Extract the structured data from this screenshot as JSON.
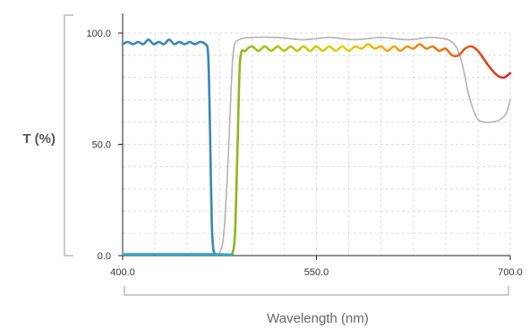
{
  "chart_data": {
    "type": "line",
    "xlabel": "Wavelength (nm)",
    "ylabel": "T (%)",
    "xlim": [
      400,
      700
    ],
    "ylim": [
      0,
      100
    ],
    "x_tick_values": [
      400,
      550,
      700
    ],
    "x_tick_labels": [
      "400.0",
      "550.0",
      "700.0"
    ],
    "y_tick_values": [
      0,
      50,
      100
    ],
    "y_tick_labels": [
      "0.0",
      "50.0",
      "100.0"
    ],
    "grid": true,
    "legend": "none",
    "series": [
      {
        "style": "gray",
        "color": "#b3b3b3",
        "x": [
          400,
          472,
          475,
          478,
          481,
          484,
          486,
          490,
          500,
          520,
          540,
          560,
          580,
          600,
          620,
          640,
          655,
          662,
          668,
          674,
          680,
          686,
          692,
          697,
          700
        ],
        "y": [
          1,
          1,
          1.5,
          8,
          35,
          75,
          93,
          97,
          98,
          98,
          97,
          98,
          97,
          98,
          97,
          98,
          96,
          88,
          72,
          62,
          60,
          60,
          61,
          64,
          70
        ]
      },
      {
        "style": "blue",
        "color": "#3a86b8",
        "x": [
          400,
          404,
          408,
          412,
          416,
          420,
          424,
          428,
          432,
          436,
          440,
          444,
          448,
          452,
          456,
          460,
          464,
          466,
          467,
          468,
          469,
          470,
          471
        ],
        "y": [
          95,
          96,
          95,
          96,
          95,
          97,
          95,
          96,
          95,
          97,
          95,
          96,
          95,
          96,
          95,
          96,
          95,
          92,
          75,
          45,
          15,
          4,
          1
        ]
      },
      {
        "style": "cyan-baseline",
        "color": "#2aa8c4",
        "x": [
          400,
          485
        ],
        "y": [
          0.5,
          0.5
        ]
      },
      {
        "style": "spectral-gradient",
        "colors": [
          "#8ab620",
          "#b8c614",
          "#e8d00e",
          "#f0a010",
          "#e4681a",
          "#d62a1e"
        ],
        "x": [
          485,
          487,
          489,
          491,
          495,
          500,
          505,
          510,
          515,
          520,
          525,
          530,
          535,
          540,
          545,
          550,
          555,
          560,
          565,
          570,
          575,
          580,
          585,
          590,
          595,
          600,
          605,
          610,
          615,
          620,
          625,
          630,
          635,
          640,
          645,
          650,
          655,
          660,
          665,
          670,
          675,
          680,
          685,
          690,
          695,
          700
        ],
        "y": [
          1,
          10,
          50,
          88,
          92,
          94,
          92,
          94,
          92,
          94,
          92,
          94,
          92,
          94,
          92,
          94,
          92,
          94,
          92,
          94,
          92,
          94,
          93,
          95,
          93,
          94,
          92,
          94,
          92,
          94,
          93,
          95,
          93,
          94,
          92,
          93,
          90,
          90,
          93,
          94,
          92,
          88,
          84,
          81,
          80,
          82
        ]
      }
    ]
  }
}
